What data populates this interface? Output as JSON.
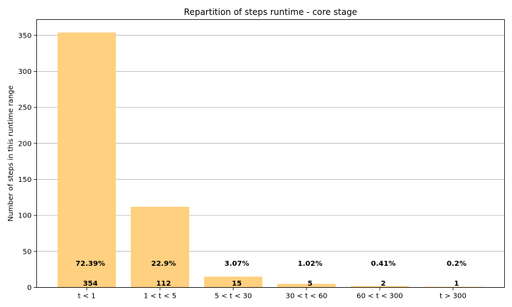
{
  "chart_data": {
    "type": "bar",
    "title": "Repartition of steps runtime - core stage",
    "xlabel": "",
    "ylabel": "Number of steps in this runtime range",
    "categories": [
      "t < 1",
      "1 < t < 5",
      "5 < t < 30",
      "30 < t < 60",
      "60 < t < 300",
      "t > 300"
    ],
    "values": [
      354,
      112,
      15,
      5,
      2,
      1
    ],
    "percent_labels": [
      "72.39%",
      "22.9%",
      "3.07%",
      "1.02%",
      "0.41%",
      "0.2%"
    ],
    "count_labels": [
      "354",
      "112",
      "15",
      "5",
      "2",
      "1"
    ],
    "ylim": [
      0,
      372
    ],
    "yticks": [
      0,
      50,
      100,
      150,
      200,
      250,
      300,
      350
    ],
    "grid": "horizontal",
    "bar_color": "#ffd080"
  }
}
